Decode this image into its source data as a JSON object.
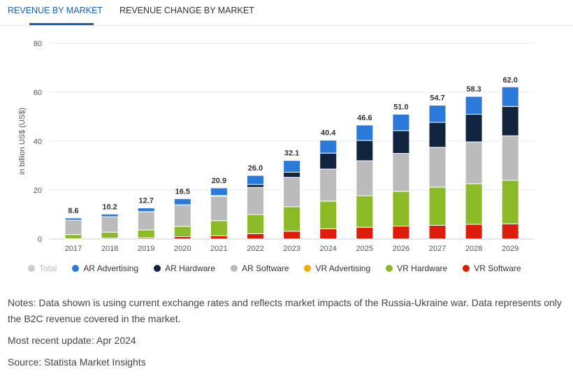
{
  "tabs": [
    {
      "label": "REVENUE BY MARKET",
      "active": true
    },
    {
      "label": "REVENUE CHANGE BY MARKET",
      "active": false
    }
  ],
  "chart_data": {
    "type": "bar",
    "stacked": true,
    "ylabel": "in billion US$ (US$)",
    "ylim": [
      0,
      80
    ],
    "yticks": [
      0,
      20,
      40,
      60,
      80
    ],
    "grid": true,
    "legend": "bottom",
    "categories": [
      "2017",
      "2018",
      "2019",
      "2020",
      "2021",
      "2022",
      "2023",
      "2024",
      "2025",
      "2026",
      "2027",
      "2028",
      "2029"
    ],
    "totals": [
      "8.6",
      "10.2",
      "12.7",
      "16.5",
      "20.9",
      "26.0",
      "32.1",
      "40.4",
      "46.6",
      "51.0",
      "54.7",
      "58.3",
      "62.0"
    ],
    "series": [
      {
        "name": "VR Software",
        "color": "#dd1c0c",
        "values": [
          0.1,
          0.4,
          0.5,
          1.0,
          1.3,
          2.2,
          3.2,
          4.2,
          4.8,
          5.3,
          5.6,
          6.0,
          6.2
        ]
      },
      {
        "name": "VR Hardware",
        "color": "#8aba26",
        "values": [
          1.7,
          2.4,
          3.2,
          4.2,
          6.2,
          7.8,
          10.0,
          11.3,
          12.9,
          14.2,
          15.6,
          16.6,
          17.8
        ]
      },
      {
        "name": "VR Advertising",
        "color": "#f5a800",
        "values": [
          0,
          0,
          0,
          0,
          0,
          0,
          0,
          0,
          0,
          0,
          0,
          0,
          0
        ]
      },
      {
        "name": "AR Software",
        "color": "#bbbbbb",
        "values": [
          5.9,
          6.3,
          7.5,
          8.8,
          10.0,
          11.1,
          12.0,
          13.1,
          14.3,
          15.5,
          16.3,
          17.1,
          18.2
        ]
      },
      {
        "name": "AR Hardware",
        "color": "#10243e",
        "values": [
          0,
          0,
          0,
          0,
          0.3,
          1.2,
          2.1,
          6.5,
          8.3,
          9.3,
          10.2,
          11.3,
          12.0
        ]
      },
      {
        "name": "AR Advertising",
        "color": "#2b7ad9",
        "values": [
          0.9,
          1.1,
          1.5,
          2.5,
          3.1,
          3.7,
          4.8,
          5.3,
          6.3,
          6.7,
          7.0,
          7.3,
          8.0
        ]
      }
    ],
    "legend_items": [
      {
        "name": "Total",
        "color": "#cccccc",
        "muted": true
      },
      {
        "name": "AR Advertising",
        "color": "#2b7ad9"
      },
      {
        "name": "AR Hardware",
        "color": "#10243e"
      },
      {
        "name": "AR Software",
        "color": "#bbbbbb"
      },
      {
        "name": "VR Advertising",
        "color": "#f5a800"
      },
      {
        "name": "VR Hardware",
        "color": "#8aba26"
      },
      {
        "name": "VR Software",
        "color": "#dd1c0c"
      }
    ]
  },
  "notes": {
    "text": "Notes: Data shown is using current exchange rates and reflects market impacts of the Russia-Ukraine war. Data represents only the B2C revenue covered in the market.",
    "update": "Most recent update: Apr 2024",
    "source": "Source: Statista Market Insights"
  }
}
